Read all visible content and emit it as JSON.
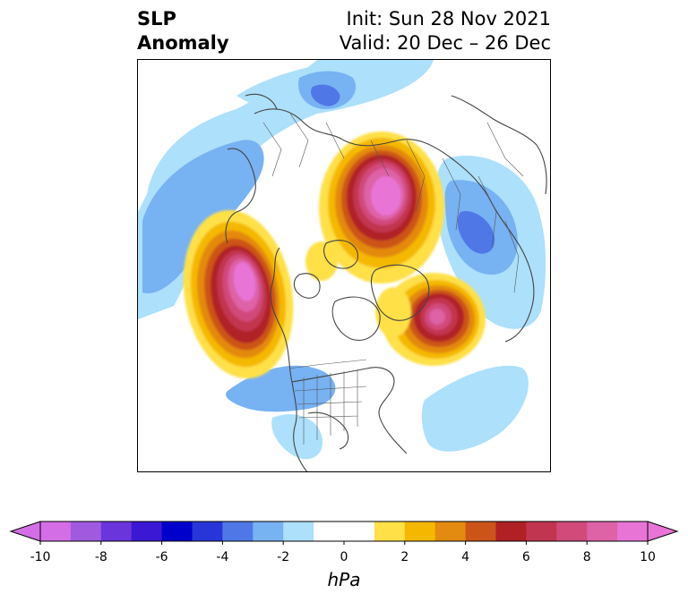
{
  "title": {
    "left_line1": "SLP",
    "left_line2": "Anomaly",
    "right_line1": "Init: Sun 28 Nov 2021",
    "right_line2": "Valid: 20 Dec – 26 Dec"
  },
  "map": {
    "projection": "north-polar-stereographic",
    "features": [
      "coastlines",
      "country-borders",
      "us-state-borders"
    ],
    "anomaly_centers": [
      {
        "name": "Alaska / Gulf of Alaska high",
        "sign": "positive",
        "peak_hPa": 10
      },
      {
        "name": "Central Arctic / Barents high",
        "sign": "positive",
        "peak_hPa": 10
      },
      {
        "name": "North Atlantic high",
        "sign": "positive",
        "peak_hPa": 9
      },
      {
        "name": "Northeast Asia / Siberia low",
        "sign": "negative",
        "peak_hPa": -5
      },
      {
        "name": "Siberian low",
        "sign": "negative",
        "peak_hPa": -4
      },
      {
        "name": "North Pacific low",
        "sign": "negative",
        "peak_hPa": -3
      },
      {
        "name": "US / Mexico low",
        "sign": "negative",
        "peak_hPa": -2
      },
      {
        "name": "Western Europe low",
        "sign": "negative",
        "peak_hPa": -2
      }
    ]
  },
  "colorbar": {
    "label": "hPa",
    "ticks": [
      "-10",
      "-8",
      "-6",
      "-4",
      "-2",
      "0",
      "2",
      "4",
      "6",
      "8",
      "10"
    ],
    "levels": [
      -10,
      -9,
      -8,
      -7,
      -6,
      -5,
      -4,
      -3,
      -2,
      -1,
      1,
      2,
      3,
      4,
      5,
      6,
      7,
      8,
      9,
      10
    ],
    "colors": [
      "#d46ee6",
      "#a05ae0",
      "#6b35dc",
      "#3a18d4",
      "#0000cc",
      "#2836d8",
      "#4f78e6",
      "#77b2f2",
      "#ace0fb",
      "#ffffff",
      "#ffe047",
      "#f5b800",
      "#e38a10",
      "#cc5418",
      "#b02025",
      "#c23550",
      "#d14a7a",
      "#dd62a6",
      "#e874d6"
    ],
    "under_color": "#d46ee6",
    "over_color": "#e874d6",
    "extend": "both"
  }
}
